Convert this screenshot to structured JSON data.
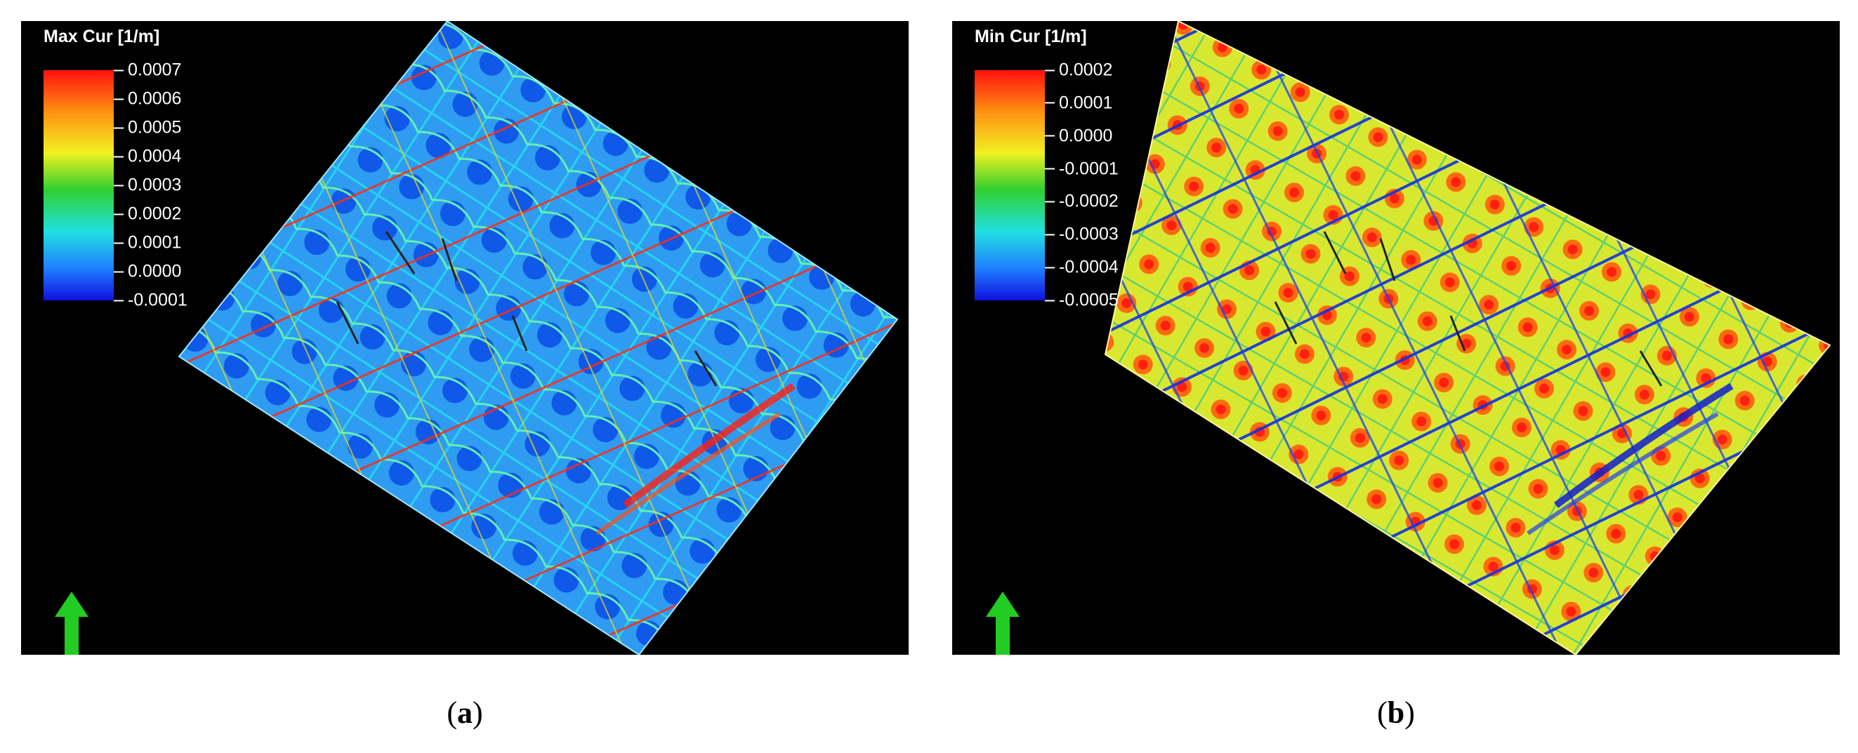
{
  "panels": [
    {
      "id": "a",
      "legend_title": "Max Cur [1/m]",
      "ticks": [
        "0.0007",
        "0.0006",
        "0.0005",
        "0.0004",
        "0.0003",
        "0.0002",
        "0.0001",
        "0.0000",
        "-0.0001"
      ],
      "caption_label": "a",
      "dominant_colors": [
        "#1060ff",
        "#22c8f0",
        "#ff2010",
        "#f0e020"
      ]
    },
    {
      "id": "b",
      "legend_title": "Min Cur [1/m]",
      "ticks": [
        "0.0002",
        "0.0001",
        "0.0000",
        "-0.0001",
        "-0.0002",
        "-0.0003",
        "-0.0004",
        "-0.0005"
      ],
      "caption_label": "b",
      "dominant_colors": [
        "#f0e020",
        "#ff8c10",
        "#ff2010",
        "#1030e0"
      ]
    }
  ],
  "north_arrow_color": "#22cc22"
}
